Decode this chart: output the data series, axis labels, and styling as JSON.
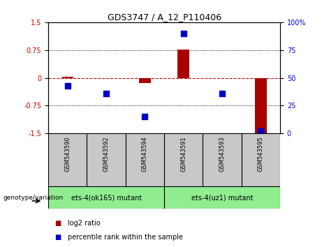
{
  "title": "GDS3747 / A_12_P110406",
  "samples": [
    "GSM543590",
    "GSM543592",
    "GSM543594",
    "GSM543591",
    "GSM543593",
    "GSM543595"
  ],
  "log2_ratios": [
    0.02,
    0.0,
    -0.15,
    0.77,
    0.0,
    -1.5
  ],
  "percentile_ranks": [
    43,
    36,
    15,
    90,
    36,
    2
  ],
  "ylim_left": [
    -1.5,
    1.5
  ],
  "ylim_right": [
    0,
    100
  ],
  "yticks_left": [
    -1.5,
    -0.75,
    0,
    0.75,
    1.5
  ],
  "yticks_right": [
    0,
    25,
    50,
    75,
    100
  ],
  "groups": [
    {
      "label": "ets-4(ok165) mutant",
      "indices": [
        0,
        1,
        2
      ],
      "color": "#90ee90"
    },
    {
      "label": "ets-4(uz1) mutant",
      "indices": [
        3,
        4,
        5
      ],
      "color": "#90ee90"
    }
  ],
  "bar_color": "#aa0000",
  "dot_color": "#0000cc",
  "zero_line_color": "#cc0000",
  "sample_box_color": "#c8c8c8",
  "background_color": "#ffffff",
  "plot_bg_color": "#ffffff",
  "genotype_label": "genotype/variation",
  "legend_log2": "log2 ratio",
  "legend_pct": "percentile rank within the sample",
  "bar_width": 0.3,
  "dot_size": 40,
  "title_fontsize": 9,
  "tick_fontsize": 7,
  "sample_fontsize": 6,
  "geno_fontsize": 7,
  "legend_fontsize": 7
}
